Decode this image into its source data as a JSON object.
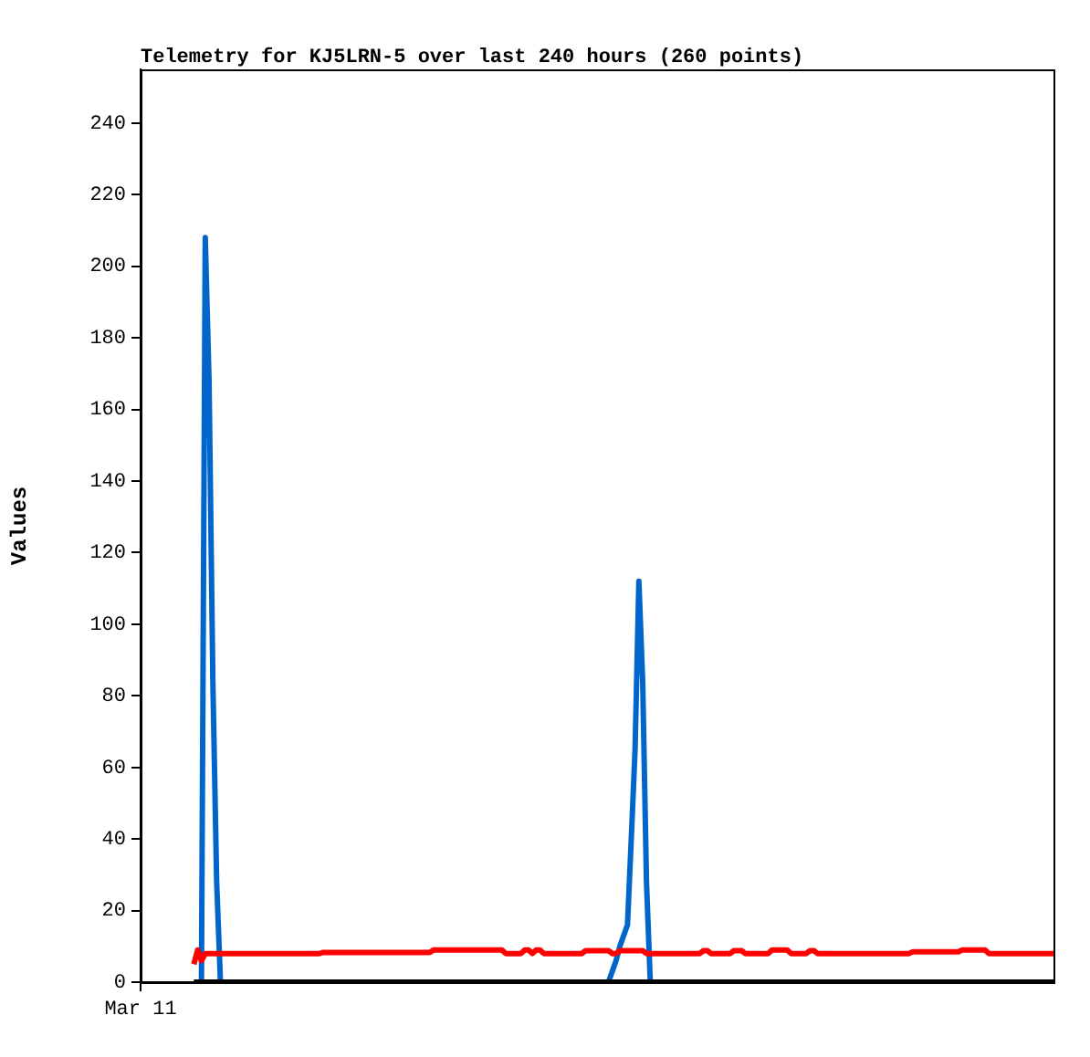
{
  "chart_data": {
    "type": "line",
    "title": "Telemetry for KJ5LRN-5 over last 240 hours (260 points)",
    "ylabel": "Values",
    "categories": [
      "Mar 11",
      null,
      null,
      null,
      null,
      null,
      null,
      null,
      null,
      null,
      null,
      null,
      null,
      null,
      null,
      null,
      null,
      null,
      null,
      null,
      null,
      null,
      null,
      null,
      null,
      null,
      null,
      null,
      null,
      null,
      null,
      null,
      null,
      null,
      null,
      null,
      null,
      null,
      null,
      null,
      null,
      null,
      null,
      null,
      null,
      null,
      null,
      null,
      null,
      null,
      null,
      null,
      null,
      null,
      null,
      null,
      null,
      null,
      null,
      null,
      null,
      null,
      null,
      null,
      null,
      null,
      null,
      null,
      null,
      null,
      null,
      null,
      null,
      null,
      null,
      null,
      null,
      null,
      null,
      null,
      null,
      null,
      null,
      null,
      null,
      null,
      null,
      null,
      null,
      null,
      null,
      null,
      null,
      null,
      null,
      null,
      null,
      null,
      null,
      null,
      null,
      null,
      null,
      null,
      null,
      null,
      null,
      null,
      null,
      null,
      null,
      null,
      null,
      null,
      null,
      null,
      null,
      null,
      null,
      null,
      null,
      null,
      null,
      null,
      null,
      null,
      null,
      null,
      null,
      null,
      null,
      null,
      null,
      null,
      null,
      null,
      null,
      null,
      null,
      null,
      null,
      null,
      null,
      null,
      null,
      null,
      null,
      null,
      null,
      null,
      null,
      null,
      null,
      null,
      null,
      null,
      null,
      null,
      null,
      null,
      null,
      null,
      null,
      null,
      null,
      null,
      null,
      null,
      null,
      null,
      null,
      null,
      null,
      null,
      null,
      null,
      null,
      null,
      null,
      null,
      null,
      null,
      null,
      null,
      null,
      null,
      null,
      null,
      null,
      null,
      null,
      null,
      null,
      null,
      null,
      null,
      null,
      null,
      null,
      null,
      null,
      null,
      null,
      null,
      null,
      null,
      null,
      null,
      null,
      null,
      null,
      null,
      null,
      null,
      null,
      null,
      null,
      null,
      null,
      null,
      null,
      null,
      null,
      null,
      null,
      null,
      null,
      null,
      null,
      null,
      null,
      null,
      null,
      null,
      null,
      null,
      null,
      null,
      null,
      null,
      null
    ],
    "ylim": [
      0,
      255
    ],
    "yticks": [
      0,
      20,
      40,
      60,
      80,
      100,
      120,
      140,
      160,
      180,
      200,
      220,
      240
    ],
    "grid": false,
    "legend": false,
    "marker": "none",
    "line_style": "solid",
    "series": [
      {
        "color": "#000000",
        "values": [
          null,
          null,
          null,
          null,
          null,
          null,
          null,
          null,
          null,
          null,
          null,
          null,
          null,
          null,
          0,
          0,
          0,
          0,
          0,
          0,
          0,
          0,
          0,
          0,
          0,
          0,
          0,
          0,
          0,
          0,
          0,
          0,
          0,
          0,
          0,
          0,
          0,
          0,
          0,
          0,
          0,
          0,
          0,
          0,
          0,
          0,
          0,
          0,
          0,
          0,
          0,
          0,
          0,
          0,
          0,
          0,
          0,
          0,
          0,
          0,
          0,
          0,
          0,
          0,
          0,
          0,
          0,
          0,
          0,
          0,
          0,
          0,
          0,
          0,
          0,
          0,
          0,
          0,
          0,
          0,
          0,
          0,
          0,
          0,
          0,
          0,
          0,
          0,
          0,
          0,
          0,
          0,
          0,
          0,
          0,
          0,
          0,
          0,
          0,
          0,
          0,
          0,
          0,
          0,
          0,
          0,
          0,
          0,
          0,
          0,
          0,
          0,
          0,
          0,
          0,
          0,
          0,
          0,
          0,
          0,
          0,
          0,
          0,
          0,
          0,
          0,
          0,
          0,
          0,
          0,
          0,
          0,
          0,
          0,
          0,
          0,
          0,
          0,
          0,
          0,
          0,
          0,
          0,
          0,
          0,
          0,
          0,
          0,
          0,
          0,
          0,
          0,
          0,
          0,
          0,
          0,
          0,
          0,
          0,
          0,
          0,
          0,
          0,
          0,
          0,
          0,
          0,
          0,
          0,
          0,
          0,
          0,
          0,
          0,
          0,
          0,
          0,
          0,
          0,
          0,
          0,
          0,
          0,
          0,
          0,
          0,
          0,
          0,
          0,
          0,
          0,
          0,
          0,
          0,
          0,
          0,
          0,
          0,
          0,
          0,
          0,
          0,
          0,
          0,
          0,
          0,
          0,
          0,
          0,
          0,
          0,
          0,
          0,
          0,
          0,
          0,
          0,
          0,
          0,
          0,
          0,
          0,
          0,
          0,
          0,
          0,
          0,
          0,
          0,
          0,
          0,
          0,
          0,
          0,
          0,
          0,
          0,
          0,
          0,
          0,
          0
        ]
      },
      {
        "color": "#ff0000",
        "values": [
          null,
          null,
          null,
          null,
          null,
          null,
          null,
          null,
          null,
          null,
          null,
          null,
          null,
          null,
          5,
          9,
          6,
          8,
          8,
          8,
          8,
          8,
          8,
          8,
          8,
          8,
          8,
          8,
          8,
          8,
          8,
          8,
          8,
          8,
          8,
          8,
          8,
          8,
          8,
          8,
          8,
          8,
          8,
          8,
          8,
          8,
          8,
          8,
          8.3,
          8.3,
          8.3,
          8.3,
          8.3,
          8.3,
          8.3,
          8.3,
          8.3,
          8.3,
          8.3,
          8.3,
          8.3,
          8.3,
          8.3,
          8.3,
          8.3,
          8.3,
          8.3,
          8.3,
          8.3,
          8.3,
          8.3,
          8.3,
          8.3,
          8.3,
          8.3,
          8.3,
          8.3,
          9,
          9,
          9,
          9,
          9,
          9,
          9,
          9,
          9,
          9,
          9,
          9,
          9,
          9,
          9,
          9,
          9,
          9,
          9,
          8,
          8,
          8,
          8,
          8,
          9,
          9,
          8,
          9,
          9,
          8,
          8,
          8,
          8,
          8,
          8,
          8,
          8,
          8,
          8,
          8,
          8.8,
          8.8,
          8.8,
          8.8,
          8.8,
          8.8,
          8.8,
          8,
          8,
          8.8,
          8.8,
          8.8,
          8.8,
          8.8,
          8.8,
          8.8,
          8,
          8,
          8,
          8,
          8,
          8,
          8,
          8,
          8,
          8,
          8,
          8,
          8,
          8,
          8,
          8.8,
          8.8,
          8,
          8,
          8,
          8,
          8,
          8,
          8.8,
          8.8,
          8.8,
          8,
          8,
          8,
          8,
          8,
          8,
          8,
          9,
          9,
          9,
          9,
          9,
          8,
          8,
          8,
          8,
          8,
          8.8,
          8.8,
          8,
          8,
          8,
          8,
          8,
          8,
          8,
          8,
          8,
          8,
          8,
          8,
          8,
          8,
          8,
          8,
          8,
          8,
          8,
          8,
          8,
          8,
          8,
          8,
          8,
          8.5,
          8.5,
          8.5,
          8.5,
          8.5,
          8.5,
          8.5,
          8.5,
          8.5,
          8.5,
          8.5,
          8.5,
          8.5,
          9,
          9,
          9,
          9,
          9,
          9,
          9,
          8,
          8,
          8,
          8,
          8,
          8,
          8,
          8,
          8,
          8,
          8,
          8,
          8,
          8,
          8,
          8,
          8,
          8
        ]
      },
      {
        "color": "#0066cc",
        "values": [
          null,
          null,
          null,
          null,
          null,
          null,
          null,
          null,
          null,
          null,
          null,
          null,
          null,
          null,
          null,
          null,
          0,
          208,
          168,
          84,
          28,
          0,
          null,
          null,
          null,
          null,
          null,
          null,
          null,
          null,
          null,
          null,
          null,
          null,
          null,
          null,
          null,
          null,
          null,
          null,
          null,
          null,
          null,
          null,
          null,
          null,
          null,
          null,
          null,
          null,
          null,
          null,
          null,
          null,
          null,
          null,
          null,
          null,
          null,
          null,
          null,
          null,
          null,
          null,
          null,
          null,
          null,
          null,
          null,
          null,
          null,
          null,
          null,
          null,
          null,
          null,
          null,
          null,
          null,
          null,
          null,
          null,
          null,
          null,
          null,
          null,
          null,
          null,
          null,
          null,
          null,
          null,
          null,
          null,
          null,
          null,
          null,
          null,
          null,
          null,
          null,
          null,
          null,
          null,
          null,
          null,
          null,
          null,
          null,
          null,
          null,
          null,
          null,
          null,
          null,
          null,
          null,
          null,
          null,
          null,
          null,
          null,
          null,
          0,
          3,
          6,
          10,
          13,
          16,
          40,
          65,
          112,
          84,
          28,
          0,
          null,
          null,
          null,
          null,
          null,
          null,
          null,
          null,
          null,
          null,
          null,
          null,
          null,
          null,
          null,
          null,
          null,
          null,
          null,
          null,
          null,
          null,
          null,
          null,
          null,
          null,
          null,
          null,
          null,
          null,
          null,
          null,
          null,
          null,
          null,
          null,
          null,
          null,
          null,
          null,
          null,
          null,
          null,
          null,
          null,
          null,
          null,
          null,
          null,
          null,
          null,
          null,
          null,
          null,
          null,
          null,
          null,
          null,
          null,
          null,
          null,
          null,
          null,
          null,
          null,
          null,
          null,
          null,
          null,
          null,
          null,
          null,
          null,
          null,
          null,
          null,
          null,
          null,
          null,
          null,
          null,
          null,
          null,
          null,
          null,
          null,
          null,
          null,
          null,
          null,
          null,
          null,
          null,
          null,
          null,
          null,
          null,
          null,
          null,
          null,
          null,
          null,
          null,
          null,
          null,
          null
        ]
      }
    ]
  }
}
